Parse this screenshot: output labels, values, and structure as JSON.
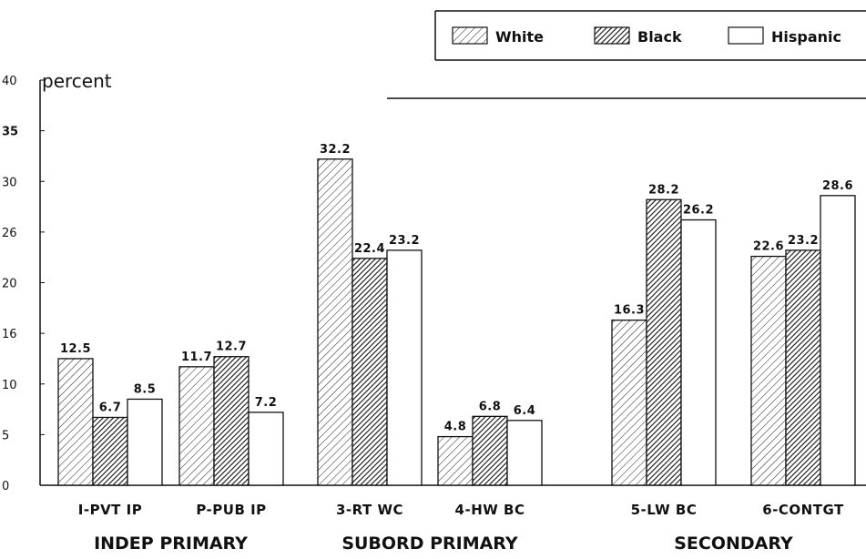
{
  "chart_data": {
    "type": "bar",
    "ylabel": "percent",
    "ylim": [
      0,
      40
    ],
    "y_ticks": [
      "0",
      "5",
      "10",
      "16",
      "20",
      "26",
      "30",
      "35",
      "40"
    ],
    "categories": [
      "I-PVT IP",
      "P-PUB IP",
      "3-RT WC",
      "4-HW BC",
      "5-LW BC",
      "6-CONTGT"
    ],
    "groups": [
      {
        "label": "INDEP PRIMARY",
        "categories": [
          "I-PVT IP",
          "P-PUB IP"
        ]
      },
      {
        "label": "SUBORD PRIMARY",
        "categories": [
          "3-RT WC",
          "4-HW BC"
        ]
      },
      {
        "label": "SECONDARY",
        "categories": [
          "5-LW BC",
          "6-CONTGT"
        ]
      }
    ],
    "series": [
      {
        "name": "White",
        "pattern": "light-hatch",
        "values": [
          12.5,
          11.7,
          32.2,
          4.8,
          16.3,
          22.6
        ],
        "labels": [
          "12.5",
          "11.7",
          "32.2",
          "4.8",
          "16.3",
          "22.6"
        ]
      },
      {
        "name": "Black",
        "pattern": "dark-hatch",
        "values": [
          6.7,
          12.7,
          22.4,
          6.8,
          28.2,
          23.2
        ],
        "labels": [
          "6.7",
          "12.7",
          "22.4",
          "6.8",
          "28.2",
          "23.2"
        ]
      },
      {
        "name": "Hispanic",
        "pattern": "blank",
        "values": [
          8.5,
          7.2,
          23.2,
          6.4,
          26.2,
          28.6
        ],
        "labels": [
          "8.5",
          "7.2",
          "23.2",
          "6.4",
          "26.2",
          "28.6"
        ]
      }
    ],
    "legend": {
      "position": "top-right"
    },
    "grid": false
  }
}
